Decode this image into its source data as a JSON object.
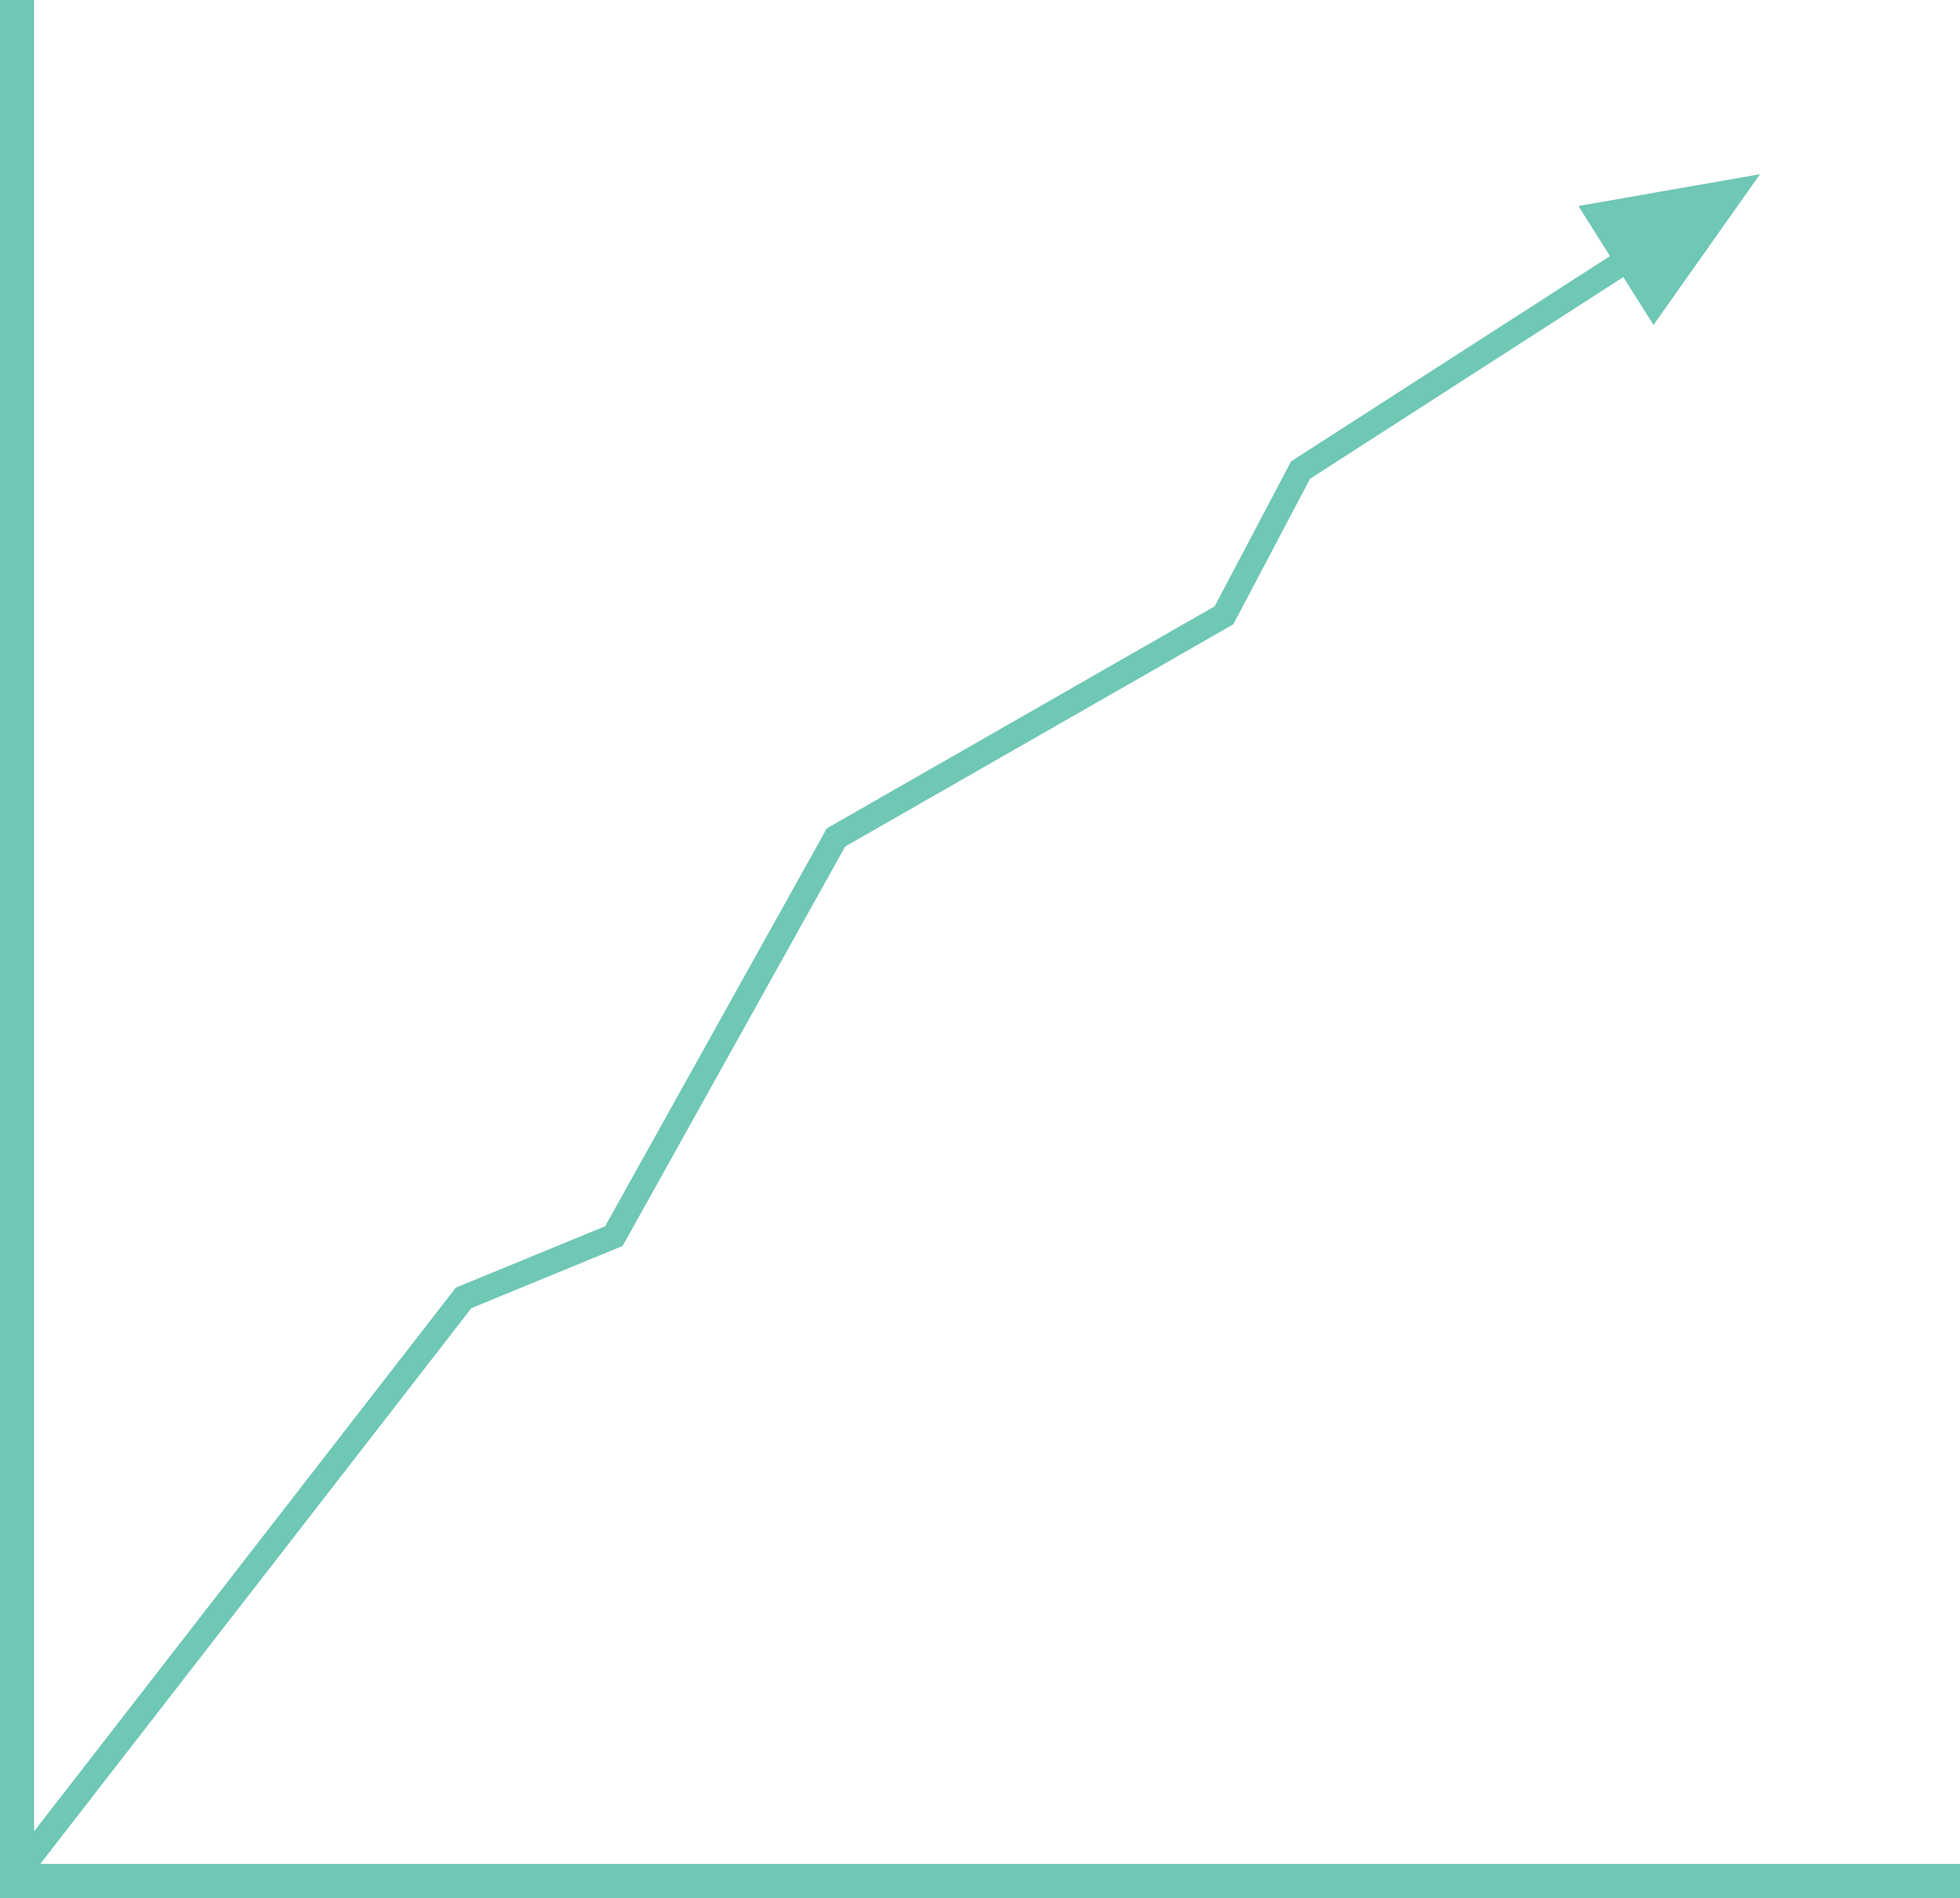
{
  "figure": {
    "description_icon": "upward-trend-arrow-icon",
    "stroke_color": "#6FC7B5",
    "background_color": "#FFFFFF"
  }
}
